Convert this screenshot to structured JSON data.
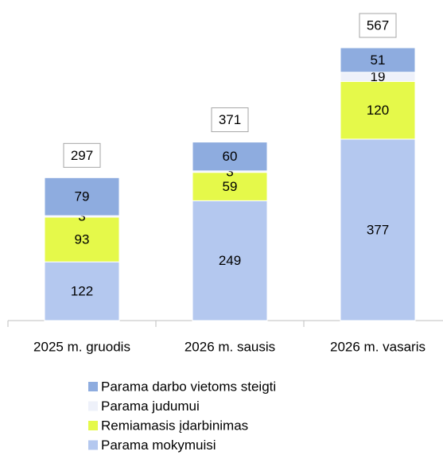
{
  "chart_data": {
    "type": "stacked_bar",
    "categories": [
      "2025 m. gruodis",
      "2026 m. sausis",
      "2026 m. vasaris"
    ],
    "series": [
      {
        "name": "Parama darbo vietoms steigti",
        "color": "#8eacdf",
        "values": [
          79,
          60,
          51
        ]
      },
      {
        "name": "Parama judumui",
        "color": "#eef1fa",
        "values": [
          3,
          3,
          19
        ]
      },
      {
        "name": "Remiamasis įdarbinimas",
        "color": "#e5f94a",
        "values": [
          93,
          59,
          120
        ]
      },
      {
        "name": "Parama mokymuisi",
        "color": "#b4c8ef",
        "values": [
          122,
          249,
          377
        ]
      }
    ],
    "totals": [
      297,
      371,
      567
    ]
  }
}
